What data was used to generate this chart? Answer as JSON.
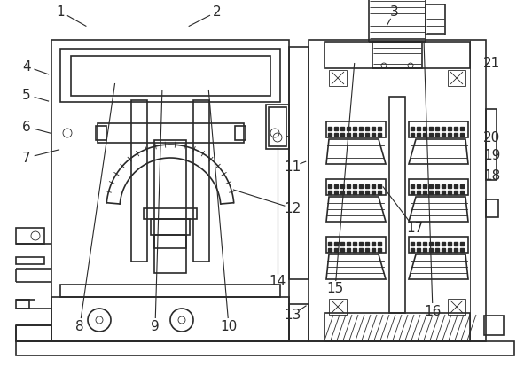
{
  "bg_color": "#ffffff",
  "line_color": "#2a2a2a",
  "lw": 1.2,
  "tlw": 0.6,
  "fs": 11,
  "figsize": [
    6.0,
    4.23
  ],
  "dpi": 100,
  "label_data": {
    "1": [
      68,
      410,
      100,
      392
    ],
    "2": [
      245,
      410,
      210,
      392
    ],
    "3": [
      445,
      410,
      435,
      392
    ],
    "4": [
      30,
      348,
      58,
      338
    ],
    "5": [
      30,
      316,
      58,
      308
    ],
    "6": [
      30,
      280,
      60,
      272
    ],
    "7": [
      30,
      245,
      70,
      255
    ],
    "8": [
      90,
      55,
      130,
      332
    ],
    "9": [
      175,
      55,
      183,
      325
    ],
    "10": [
      258,
      55,
      235,
      325
    ],
    "11": [
      330,
      235,
      348,
      242
    ],
    "12": [
      330,
      188,
      260,
      210
    ],
    "13": [
      330,
      68,
      348,
      80
    ],
    "14": [
      313,
      105,
      313,
      260
    ],
    "15": [
      378,
      97,
      400,
      355
    ],
    "16": [
      488,
      72,
      478,
      378
    ],
    "17": [
      468,
      165,
      430,
      215
    ],
    "18": [
      555,
      225,
      548,
      225
    ],
    "19": [
      555,
      248,
      548,
      248
    ],
    "20": [
      555,
      268,
      548,
      268
    ],
    "21": [
      555,
      352,
      548,
      352
    ]
  }
}
